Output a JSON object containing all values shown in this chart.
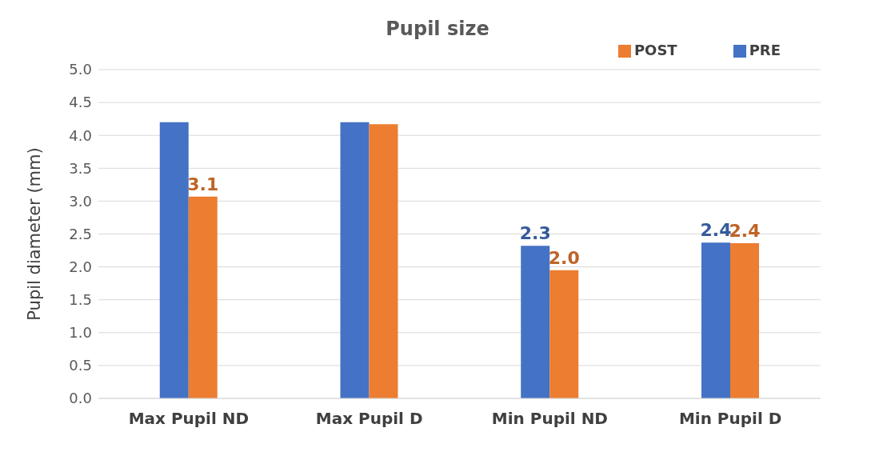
{
  "chart_data": {
    "type": "bar",
    "title": "Pupil size",
    "ylabel": "Pupil diameter (mm)",
    "categories": [
      "Max Pupil ND",
      "Max Pupil D",
      "Min Pupil ND",
      "Min Pupil D"
    ],
    "series": [
      {
        "name": "PRE",
        "color": "#4472c4",
        "values": [
          4.2,
          4.2,
          2.32,
          2.37
        ],
        "value_labels": [
          null,
          null,
          "2.3",
          "2.4"
        ]
      },
      {
        "name": "POST",
        "color": "#ed7d31",
        "values": [
          3.07,
          4.17,
          1.95,
          2.36
        ],
        "value_labels": [
          "3.1",
          null,
          "2.0",
          "2.4"
        ]
      }
    ],
    "ylim": [
      0,
      5
    ],
    "yticks": [
      {
        "value": 0,
        "label": "0.0"
      },
      {
        "value": 0.5,
        "label": "0.5"
      },
      {
        "value": 1,
        "label": "1.0"
      },
      {
        "value": 1.5,
        "label": "1.5"
      },
      {
        "value": 2,
        "label": "2.0"
      },
      {
        "value": 2.5,
        "label": "2.5"
      },
      {
        "value": 3,
        "label": "3.0"
      },
      {
        "value": 3.5,
        "label": "3.5"
      },
      {
        "value": 4,
        "label": "4.0"
      },
      {
        "value": 4.5,
        "label": "4.5"
      },
      {
        "value": 5,
        "label": "5.0"
      }
    ],
    "grid": "y",
    "legend": "top right"
  }
}
